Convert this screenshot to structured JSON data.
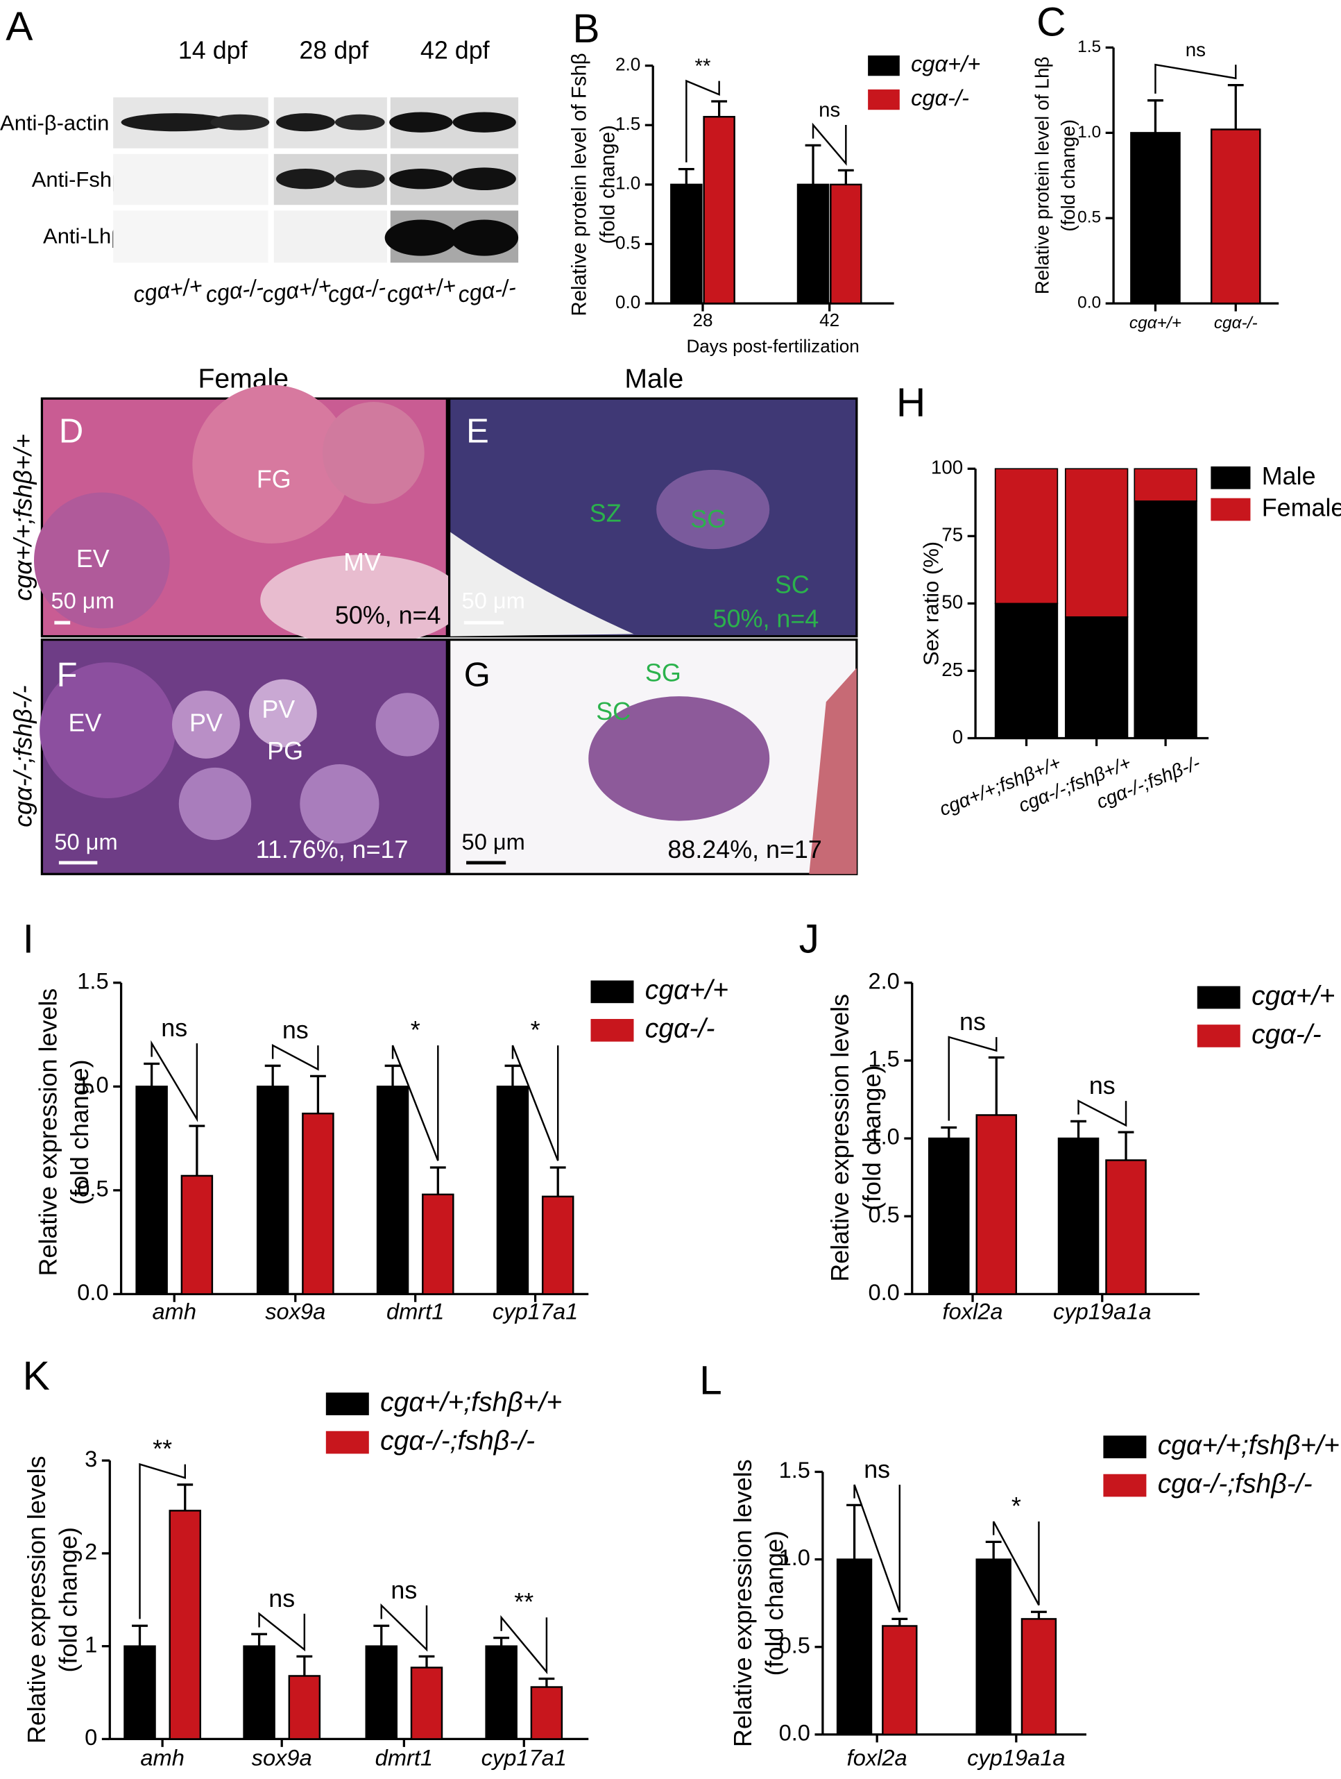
{
  "figure_a": {
    "panel": "A",
    "timepoints": [
      "14 dpf",
      "28 dpf",
      "42 dpf"
    ],
    "antibodies": [
      "Anti-β-actin",
      "Anti-Fshβ",
      "Anti-Lhβ"
    ],
    "lanes": [
      "cgα+/+",
      "cgα-/-",
      "cgα+/+",
      "cgα-/-",
      "cgα+/+",
      "cgα-/-"
    ]
  },
  "histology": {
    "columns": [
      "Female",
      "Male"
    ],
    "rows": [
      "cgα+/+;fshβ+/+",
      "cgα-/-;fshβ-/-"
    ],
    "panels": [
      {
        "letter": "D",
        "labels": [
          "FG",
          "EV",
          "MV"
        ],
        "scale_bar": "50 μm",
        "caption": "50%, n=4"
      },
      {
        "letter": "E",
        "labels": [
          "SZ",
          "SG",
          "SC"
        ],
        "scale_bar": "50 μm",
        "caption": "50%, n=4"
      },
      {
        "letter": "F",
        "labels": [
          "EV",
          "PV",
          "PV",
          "PG"
        ],
        "scale_bar": "50 μm",
        "caption": "11.76%, n=17"
      },
      {
        "letter": "G",
        "labels": [
          "SG",
          "SC"
        ],
        "scale_bar": "50 μm",
        "caption": "88.24%, n=17"
      }
    ]
  },
  "chart_data": [
    {
      "panel": "B",
      "type": "bar",
      "categories": [
        "28",
        "42"
      ],
      "italic_categories": false,
      "series": [
        {
          "name": "cgα+/+",
          "color": "#000000",
          "values": [
            1.0,
            1.0
          ],
          "errors": [
            0.13,
            0.33
          ]
        },
        {
          "name": "cgα-/-",
          "color": "#c8161d",
          "values": [
            1.57,
            1.0
          ],
          "errors": [
            0.13,
            0.12
          ]
        }
      ],
      "ylim": [
        0,
        2
      ],
      "yticks": [
        {
          "value": 0,
          "label": "0.0"
        },
        0.5,
        {
          "value": 1,
          "label": "1.0"
        },
        1.5,
        {
          "value": 2,
          "label": "2.0"
        }
      ],
      "ylabel": [
        "Relative protein level of Fshβ",
        "(fold change)"
      ],
      "xlabel": "Days post-fertilization",
      "annotations": [
        "**",
        "ns"
      ]
    },
    {
      "panel": "C",
      "type": "bar",
      "categories": [
        "cgα+/+",
        "cgα-/-"
      ],
      "italic_categories": true,
      "values": [
        1.0,
        1.02
      ],
      "errors": [
        0.19,
        0.26
      ],
      "colors": [
        "#000000",
        "#c8161d"
      ],
      "ylim": [
        0,
        1.5
      ],
      "yticks": [
        {
          "value": 0,
          "label": "0.0"
        },
        0.5,
        {
          "value": 1,
          "label": "1.0"
        },
        1.5
      ],
      "ylabel": [
        "Relative protein level of Lhβ",
        "(fold change)"
      ],
      "annotations": [
        "ns"
      ]
    },
    {
      "panel": "H",
      "type": "stacked_bar",
      "categories": [
        "cgα+/+;fshβ+/+",
        "cgα-/-;fshβ+/+",
        "cgα-/-;fshβ-/-"
      ],
      "italic_categories": true,
      "series": [
        {
          "name": "Male",
          "color": "#000000",
          "values": [
            50,
            45,
            88
          ]
        },
        {
          "name": "Female",
          "color": "#c8161d",
          "values": [
            50,
            55,
            12
          ]
        }
      ],
      "ylim": [
        0,
        100
      ],
      "yticks": [
        0,
        25,
        50,
        75,
        100
      ],
      "ylabel": [
        "Sex ratio (%)"
      ]
    },
    {
      "panel": "I",
      "type": "bar",
      "categories": [
        "amh",
        "sox9a",
        "dmrt1",
        "cyp17a1"
      ],
      "italic_categories": true,
      "series": [
        {
          "name": "cgα+/+",
          "color": "#000000",
          "values": [
            1,
            1,
            1,
            1
          ],
          "errors": [
            0.11,
            0.1,
            0.1,
            0.1
          ]
        },
        {
          "name": "cgα-/-",
          "color": "#c8161d",
          "values": [
            0.57,
            0.87,
            0.48,
            0.47
          ],
          "errors": [
            0.24,
            0.18,
            0.13,
            0.14
          ]
        }
      ],
      "ylim": [
        0,
        1.5
      ],
      "yticks": [
        {
          "value": 0,
          "label": "0.0"
        },
        0.5,
        {
          "value": 1,
          "label": "1.0"
        },
        1.5
      ],
      "ylabel": [
        "Relative expression levels",
        "(fold change)"
      ],
      "annotations": [
        "ns",
        "ns",
        "*",
        "*"
      ]
    },
    {
      "panel": "J",
      "type": "bar",
      "categories": [
        "foxl2a",
        "cyp19a1a"
      ],
      "italic_categories": true,
      "series": [
        {
          "name": "cgα+/+",
          "color": "#000000",
          "values": [
            1,
            1
          ],
          "errors": [
            0.07,
            0.11
          ]
        },
        {
          "name": "cgα-/-",
          "color": "#c8161d",
          "values": [
            1.15,
            0.86
          ],
          "errors": [
            0.37,
            0.18
          ]
        }
      ],
      "ylim": [
        0,
        2
      ],
      "yticks": [
        {
          "value": 0,
          "label": "0.0"
        },
        0.5,
        {
          "value": 1,
          "label": "1.0"
        },
        1.5,
        {
          "value": 2,
          "label": "2.0"
        }
      ],
      "ylabel": [
        "Relative expression levels",
        "(fold change)"
      ],
      "annotations": [
        "ns",
        "ns"
      ]
    },
    {
      "panel": "K",
      "type": "bar",
      "categories": [
        "amh",
        "sox9a",
        "dmrt1",
        "cyp17a1"
      ],
      "italic_categories": true,
      "series": [
        {
          "name": "cgα+/+;fshβ+/+",
          "color": "#000000",
          "values": [
            1,
            1,
            1,
            1
          ],
          "errors": [
            0.22,
            0.13,
            0.22,
            0.09
          ]
        },
        {
          "name": "cgα-/-;fshβ-/-",
          "color": "#c8161d",
          "values": [
            2.46,
            0.68,
            0.77,
            0.56
          ],
          "errors": [
            0.28,
            0.21,
            0.12,
            0.09
          ]
        }
      ],
      "ylim": [
        0,
        3
      ],
      "yticks": [
        0,
        1,
        2,
        3
      ],
      "ylabel": [
        "Relative expression levels",
        "(fold change)"
      ],
      "annotations": [
        "**",
        "ns",
        "ns",
        "**"
      ]
    },
    {
      "panel": "L",
      "type": "bar",
      "categories": [
        "foxl2a",
        "cyp19a1a"
      ],
      "italic_categories": true,
      "series": [
        {
          "name": "cgα+/+;fshβ+/+",
          "color": "#000000",
          "values": [
            1,
            1
          ],
          "errors": [
            0.31,
            0.1
          ]
        },
        {
          "name": "cgα-/-;fshβ-/-",
          "color": "#c8161d",
          "values": [
            0.62,
            0.66
          ],
          "errors": [
            0.04,
            0.04
          ]
        }
      ],
      "ylim": [
        0,
        1.5
      ],
      "yticks": [
        {
          "value": 0,
          "label": "0.0"
        },
        0.5,
        {
          "value": 1,
          "label": "1.0"
        },
        1.5
      ],
      "ylabel": [
        "Relative expression levels",
        "(fold change)"
      ],
      "annotations": [
        "ns",
        "*"
      ]
    }
  ]
}
